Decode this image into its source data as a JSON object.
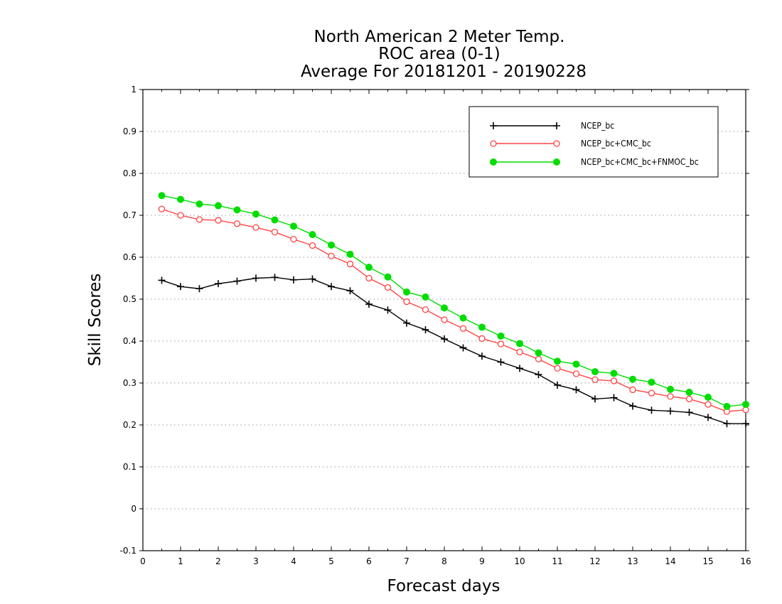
{
  "chart_data": {
    "type": "line",
    "title": [
      "North American 2 Meter Temp.",
      "ROC area (0-1)",
      "Average For 20181201 - 20190228"
    ],
    "xlabel": "Forecast days",
    "ylabel": "Skill Scores",
    "xlim": [
      0,
      16
    ],
    "ylim": [
      -0.1,
      1
    ],
    "x_ticks": [
      0,
      1,
      2,
      3,
      4,
      5,
      6,
      7,
      8,
      9,
      10,
      11,
      12,
      13,
      14,
      15,
      16
    ],
    "y_ticks": [
      -0.1,
      0,
      0.1,
      0.2,
      0.3,
      0.4,
      0.5,
      0.6,
      0.7,
      0.8,
      0.9,
      1
    ],
    "y_tick_labels": [
      "-0.1",
      "0",
      "0.1",
      "0.2",
      "0.3",
      "0.4",
      "0.5",
      "0.6",
      "0.7",
      "0.8",
      "0.9",
      "1"
    ],
    "grid": "horizontal-dotted",
    "legend_position": "top-right",
    "x": [
      0.5,
      1,
      1.5,
      2,
      2.5,
      3,
      3.5,
      4,
      4.5,
      5,
      5.5,
      6,
      6.5,
      7,
      7.5,
      8,
      8.5,
      9,
      9.5,
      10,
      10.5,
      11,
      11.5,
      12,
      12.5,
      13,
      13.5,
      14,
      14.5,
      15,
      15.5,
      16
    ],
    "series": [
      {
        "name": "NCEP_bc",
        "color": "#000000",
        "marker": "plus",
        "values": [
          0.545,
          0.53,
          0.525,
          0.537,
          0.543,
          0.55,
          0.552,
          0.546,
          0.548,
          0.53,
          0.52,
          0.488,
          0.474,
          0.443,
          0.427,
          0.405,
          0.384,
          0.364,
          0.35,
          0.335,
          0.32,
          0.295,
          0.284,
          0.262,
          0.265,
          0.245,
          0.235,
          0.233,
          0.23,
          0.218,
          0.203,
          0.203
        ]
      },
      {
        "name": "NCEP_bc+CMC_bc",
        "color": "#ff4444",
        "marker": "open-circle",
        "values": [
          0.715,
          0.7,
          0.69,
          0.688,
          0.68,
          0.671,
          0.66,
          0.643,
          0.628,
          0.603,
          0.584,
          0.55,
          0.528,
          0.494,
          0.475,
          0.451,
          0.43,
          0.406,
          0.393,
          0.374,
          0.357,
          0.335,
          0.322,
          0.308,
          0.305,
          0.284,
          0.276,
          0.268,
          0.262,
          0.249,
          0.232,
          0.236
        ]
      },
      {
        "name": "NCEP_bc+CMC_bc+FNMOC_bc",
        "color": "#00dd00",
        "marker": "filled-circle",
        "values": [
          0.747,
          0.738,
          0.727,
          0.723,
          0.713,
          0.703,
          0.689,
          0.674,
          0.654,
          0.629,
          0.607,
          0.576,
          0.553,
          0.517,
          0.505,
          0.479,
          0.455,
          0.433,
          0.412,
          0.394,
          0.372,
          0.352,
          0.345,
          0.327,
          0.323,
          0.309,
          0.302,
          0.285,
          0.278,
          0.266,
          0.244,
          0.249
        ]
      }
    ]
  }
}
